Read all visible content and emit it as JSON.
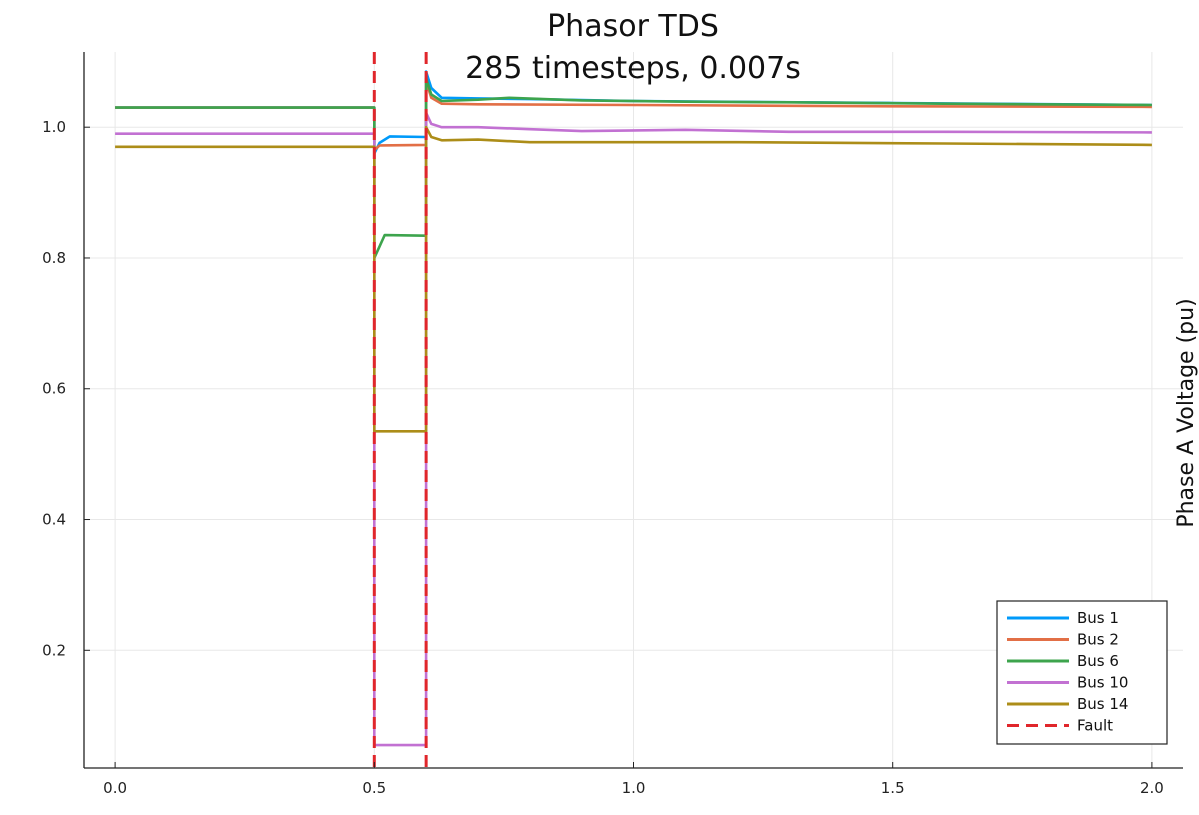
{
  "chart_data": {
    "type": "line",
    "title": "Phasor TDS",
    "subtitle": "285 timesteps, 0.007s",
    "xlabel": "",
    "ylabel": "Phase A Voltage (pu)",
    "xlim": [
      -0.06,
      2.06
    ],
    "ylim": [
      0.02,
      1.115
    ],
    "xticks": [
      "0.0",
      "0.5",
      "1.0",
      "1.5",
      "2.0"
    ],
    "yticks": [
      "0.2",
      "0.4",
      "0.6",
      "0.8",
      "1.0"
    ],
    "grid": true,
    "legend_position": "bottom-right",
    "series": [
      {
        "name": "Bus 1",
        "color": "#009AFA",
        "points": [
          [
            0.0,
            1.03
          ],
          [
            0.5,
            1.03
          ],
          [
            0.5,
            0.96
          ],
          [
            0.51,
            0.976
          ],
          [
            0.53,
            0.986
          ],
          [
            0.6,
            0.985
          ],
          [
            0.6,
            1.085
          ],
          [
            0.61,
            1.06
          ],
          [
            0.63,
            1.045
          ],
          [
            0.7,
            1.044
          ],
          [
            0.8,
            1.043
          ],
          [
            1.0,
            1.04
          ],
          [
            1.5,
            1.037
          ],
          [
            2.0,
            1.034
          ]
        ]
      },
      {
        "name": "Bus 2",
        "color": "#E26F46",
        "points": [
          [
            0.0,
            1.03
          ],
          [
            0.5,
            1.03
          ],
          [
            0.5,
            0.965
          ],
          [
            0.51,
            0.972
          ],
          [
            0.6,
            0.973
          ],
          [
            0.6,
            1.07
          ],
          [
            0.61,
            1.045
          ],
          [
            0.63,
            1.036
          ],
          [
            0.7,
            1.035
          ],
          [
            1.0,
            1.034
          ],
          [
            1.5,
            1.032
          ],
          [
            2.0,
            1.031
          ]
        ]
      },
      {
        "name": "Bus 6",
        "color": "#3DA44D",
        "points": [
          [
            0.0,
            1.03
          ],
          [
            0.5,
            1.03
          ],
          [
            0.5,
            0.8
          ],
          [
            0.52,
            0.835
          ],
          [
            0.6,
            0.834
          ],
          [
            0.6,
            1.075
          ],
          [
            0.61,
            1.05
          ],
          [
            0.63,
            1.04
          ],
          [
            0.7,
            1.042
          ],
          [
            0.76,
            1.045
          ],
          [
            0.9,
            1.041
          ],
          [
            1.1,
            1.039
          ],
          [
            1.3,
            1.038
          ],
          [
            1.6,
            1.036
          ],
          [
            2.0,
            1.034
          ]
        ]
      },
      {
        "name": "Bus 10",
        "color": "#C271D2",
        "points": [
          [
            0.0,
            0.99
          ],
          [
            0.5,
            0.99
          ],
          [
            0.5,
            0.055
          ],
          [
            0.6,
            0.055
          ],
          [
            0.6,
            1.022
          ],
          [
            0.61,
            1.005
          ],
          [
            0.63,
            1.0
          ],
          [
            0.7,
            1.0
          ],
          [
            0.8,
            0.997
          ],
          [
            0.9,
            0.994
          ],
          [
            1.1,
            0.996
          ],
          [
            1.3,
            0.993
          ],
          [
            1.6,
            0.993
          ],
          [
            2.0,
            0.992
          ]
        ]
      },
      {
        "name": "Bus 14",
        "color": "#AC8D18",
        "points": [
          [
            0.0,
            0.97
          ],
          [
            0.5,
            0.97
          ],
          [
            0.5,
            0.535
          ],
          [
            0.6,
            0.535
          ],
          [
            0.6,
            1.0
          ],
          [
            0.61,
            0.985
          ],
          [
            0.63,
            0.98
          ],
          [
            0.7,
            0.981
          ],
          [
            0.8,
            0.977
          ],
          [
            1.0,
            0.977
          ],
          [
            1.2,
            0.977
          ],
          [
            1.6,
            0.975
          ],
          [
            2.0,
            0.973
          ]
        ]
      },
      {
        "name": "Fault",
        "color": "#E0262B",
        "dashed": true,
        "lines_x": [
          0.5,
          0.6
        ]
      }
    ]
  }
}
